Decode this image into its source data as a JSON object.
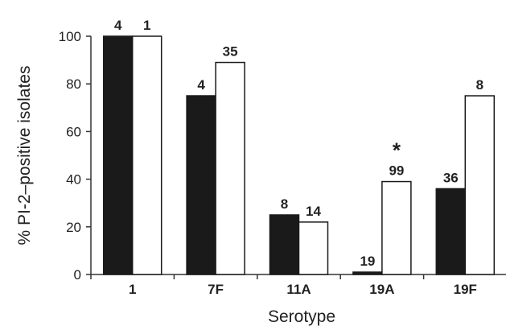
{
  "chart_data": {
    "type": "bar",
    "title": "",
    "xlabel": "Serotype",
    "ylabel": "% PI-2–positive isolates",
    "ylim": [
      0,
      100
    ],
    "yticks": [
      "0",
      "20",
      "40",
      "60",
      "80",
      "100"
    ],
    "grid": false,
    "legend": "none",
    "categories": [
      "1",
      "7F",
      "11A",
      "19A",
      "19F"
    ],
    "series": [
      {
        "color": "#1a1a1a",
        "values": [
          100,
          75,
          25,
          1,
          36
        ],
        "labels": [
          "4",
          "4",
          "8",
          "19",
          "36"
        ]
      },
      {
        "color": "#ffffff",
        "values": [
          100,
          89,
          22,
          39,
          75
        ],
        "labels": [
          "1",
          "35",
          "14",
          "99",
          "8"
        ]
      }
    ],
    "annotations": [
      {
        "text": "*",
        "category": "19A",
        "series": 1
      }
    ]
  }
}
